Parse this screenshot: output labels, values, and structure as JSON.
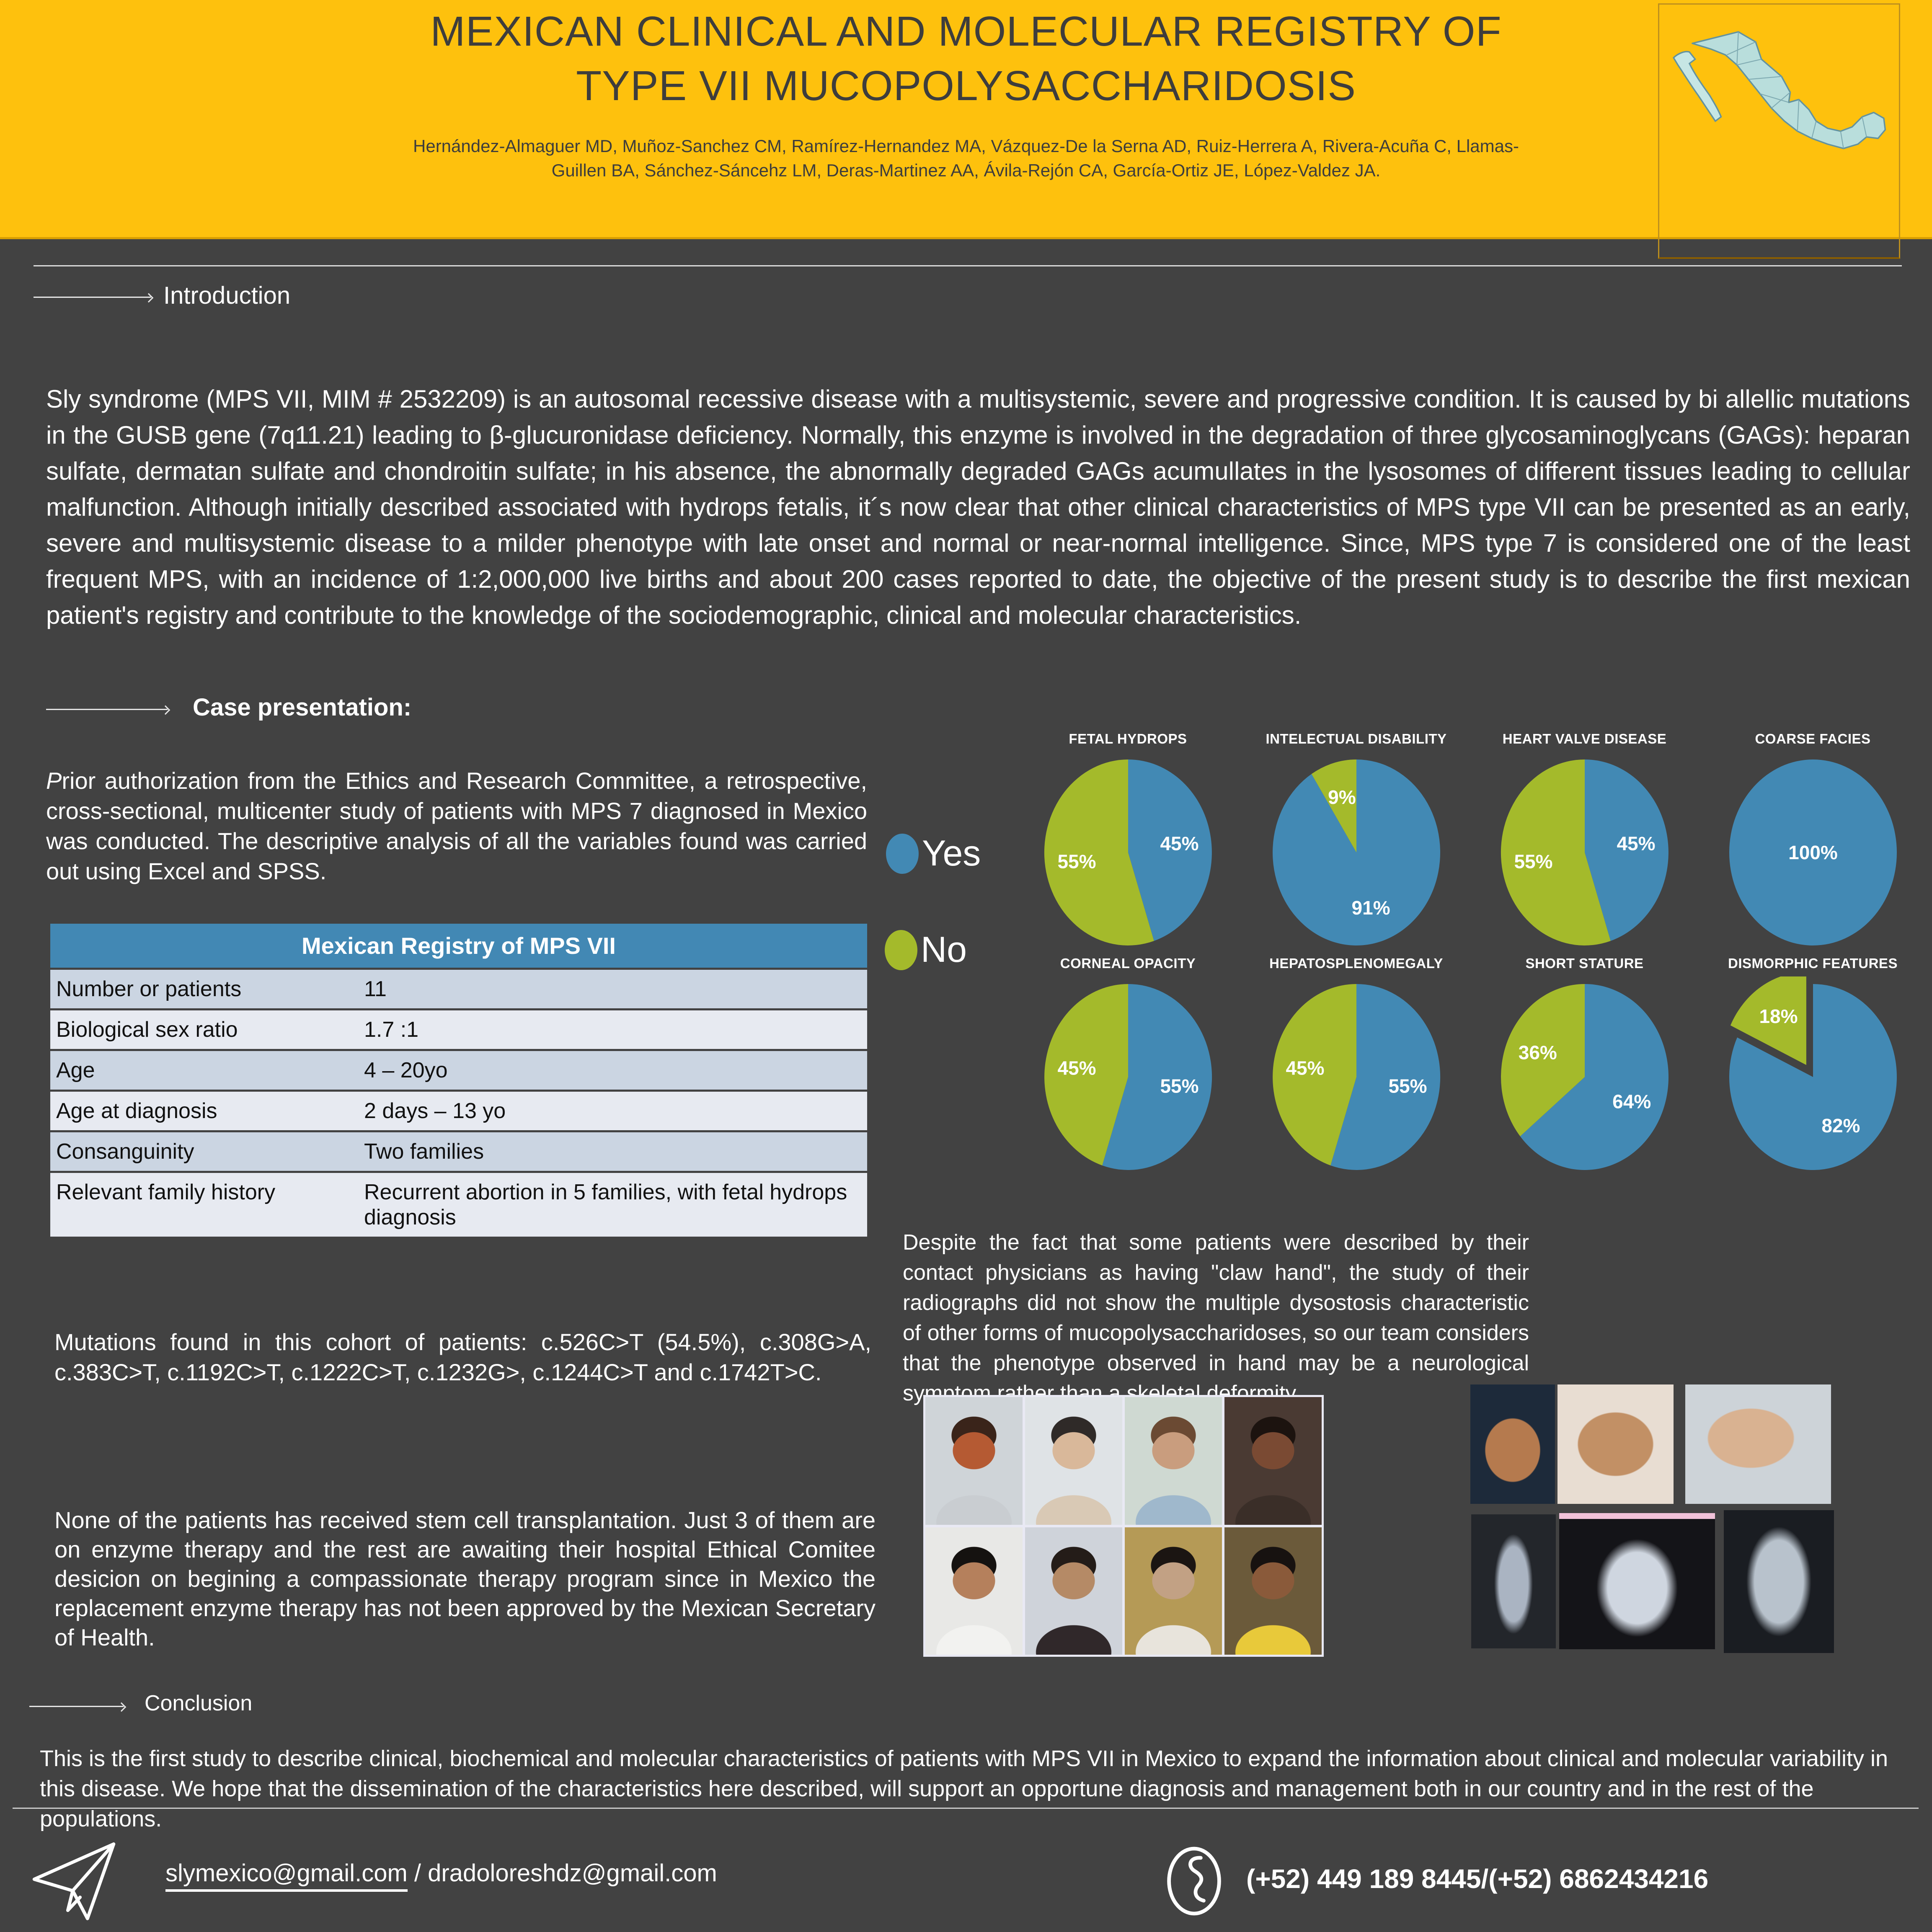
{
  "header": {
    "title_line1": "MEXICAN CLINICAL AND MOLECULAR REGISTRY OF",
    "title_line2": "TYPE VII  MUCOPOLYSACCHARIDOSIS",
    "authors_line1": "Hernández-Almaguer MD, Muñoz-Sanchez CM, Ramírez-Hernandez MA, Vázquez-De la Serna AD, Ruiz-Herrera A, Rivera-Acuña C, Llamas-",
    "authors_line2": "Guillen BA, Sánchez-Sáncehz LM, Deras-Martinez AA, Ávila-Rejón CA, García-Ortiz JE, López-Valdez JA.",
    "map_icon": "mexico-map"
  },
  "sections": {
    "introduction": {
      "heading": "Introduction",
      "body": "Sly syndrome (MPS VII, MIM # 2532209) is an autosomal recessive disease with a multisystemic, severe and progressive condition. It is caused by bi allellic mutations in the GUSB gene (7q11.21) leading to β-glucuronidase deficiency. Normally, this enzyme is involved in the degradation of three glycosaminoglycans (GAGs): heparan sulfate, dermatan sulfate and chondroitin sulfate; in his absence, the abnormally degraded GAGs acumullates in the lysosomes of different tissues leading to cellular malfunction. Although initially described associated with hydrops fetalis, it´s now clear that other clinical characteristics of MPS type VII can be presented as an early, severe and multisystemic disease to a milder phenotype with late onset and normal or near-normal intelligence. Since, MPS type 7 is considered one of the least frequent MPS, with an incidence of 1:2,000,000 live births and about 200 cases reported to date, the objective of the present study is to describe the first mexican patient's registry and contribute to the knowledge of the sociodemographic, clinical and molecular characteristics."
    },
    "case_presentation": {
      "heading": "Case presentation:",
      "body": "Prior authorization from the Ethics and Research Committee, a retrospective, cross-sectional, multicenter study of patients with MPS 7 diagnosed in Mexico was conducted. The descriptive analysis of all the variables found was carried out using Excel and SPSS.",
      "mutations": "Mutations found in this cohort of patients: c.526C>T (54.5%), c.308G>A, c.383C>T, c.1192C>T, c.1222C>T, c.1232G>, c.1244C>T and c.1742T>C.",
      "therapy": "None of the patients has received stem cell transplantation. Just 3 of them are on enzyme therapy and the rest are awaiting their hospital Ethical Comitee desicion on begining a compassionate therapy program since in Mexico the replacement enzyme therapy has not been approved by the Mexican Secretary of Health.",
      "claw_hand": "Despite the fact that some patients were described by their contact physicians as having \"claw hand\", the study of their radiographs did not show the multiple dysostosis characteristic of other forms of mucopolysaccharidoses, so our team considers that the phenotype observed in hand may be a neurological symptom rather than a skeletal deformity."
    },
    "conclusion": {
      "heading": "Conclusion",
      "body": "This is the first study to describe clinical, biochemical and molecular characteristics of patients with MPS VII in Mexico to expand the information about clinical and molecular variability in this disease. We hope that the dissemination of the characteristics here described, will support an opportune diagnosis and management both in our country and in the rest of the populations."
    }
  },
  "table": {
    "title": "Mexican Registry of MPS VII",
    "rows": [
      {
        "label": "Number or patients",
        "value": "11"
      },
      {
        "label": "Biological sex ratio",
        "value": "1.7 :1"
      },
      {
        "label": "Age",
        "value": "4 – 20yo"
      },
      {
        "label": "Age at diagnosis",
        "value": "2 days – 13 yo"
      },
      {
        "label": "Consanguinity",
        "value": "Two families"
      },
      {
        "label": "Relevant family history",
        "value": "Recurrent abortion in 5 families, with fetal hydrops diagnosis"
      }
    ]
  },
  "legend": {
    "yes": "Yes",
    "no": "No"
  },
  "chart_data": {
    "type": "pie",
    "legend": [
      "Yes",
      "No"
    ],
    "legend_position": "left",
    "colors": {
      "Yes": "#4289B4",
      "No": "#A4BA2B"
    },
    "charts": [
      {
        "title": "FETAL HYDROPS",
        "slices": [
          {
            "label": "Yes",
            "value": 45
          },
          {
            "label": "No",
            "value": 55
          }
        ]
      },
      {
        "title": "INTELECTUAL DISABILITY",
        "slices": [
          {
            "label": "Yes",
            "value": 91
          },
          {
            "label": "No",
            "value": 9
          }
        ]
      },
      {
        "title": "HEART VALVE DISEASE",
        "slices": [
          {
            "label": "Yes",
            "value": 45
          },
          {
            "label": "No",
            "value": 55
          }
        ]
      },
      {
        "title": "COARSE FACIES",
        "slices": [
          {
            "label": "Yes",
            "value": 100
          }
        ]
      },
      {
        "title": "CORNEAL OPACITY",
        "slices": [
          {
            "label": "Yes",
            "value": 55
          },
          {
            "label": "No",
            "value": 45
          }
        ]
      },
      {
        "title": "HEPATOSPLENOMEGALY",
        "slices": [
          {
            "label": "Yes",
            "value": 55
          },
          {
            "label": "No",
            "value": 45
          }
        ]
      },
      {
        "title": "SHORT STATURE",
        "slices": [
          {
            "label": "Yes",
            "value": 64
          },
          {
            "label": "No",
            "value": 36
          }
        ]
      },
      {
        "title": "DISMORPHIC FEATURES",
        "slices": [
          {
            "label": "Yes",
            "value": 82
          },
          {
            "label": "No",
            "value": 18,
            "exploded": true
          }
        ]
      }
    ]
  },
  "footer": {
    "email_link": "slymexico@gmail.com",
    "email_rest": " / dradoloreshdz@gmail.com",
    "phone": "(+52) 449 189 8445/(+52) 6862434216"
  },
  "colors": {
    "header_yellow": "#FEC10D",
    "background_gray": "#424242",
    "table_header_blue": "#4288B4",
    "table_row_dark": "#CBD5E2",
    "table_row_light": "#E7EAF1",
    "yes_blue": "#4289B4",
    "no_green": "#A4BA2B"
  }
}
